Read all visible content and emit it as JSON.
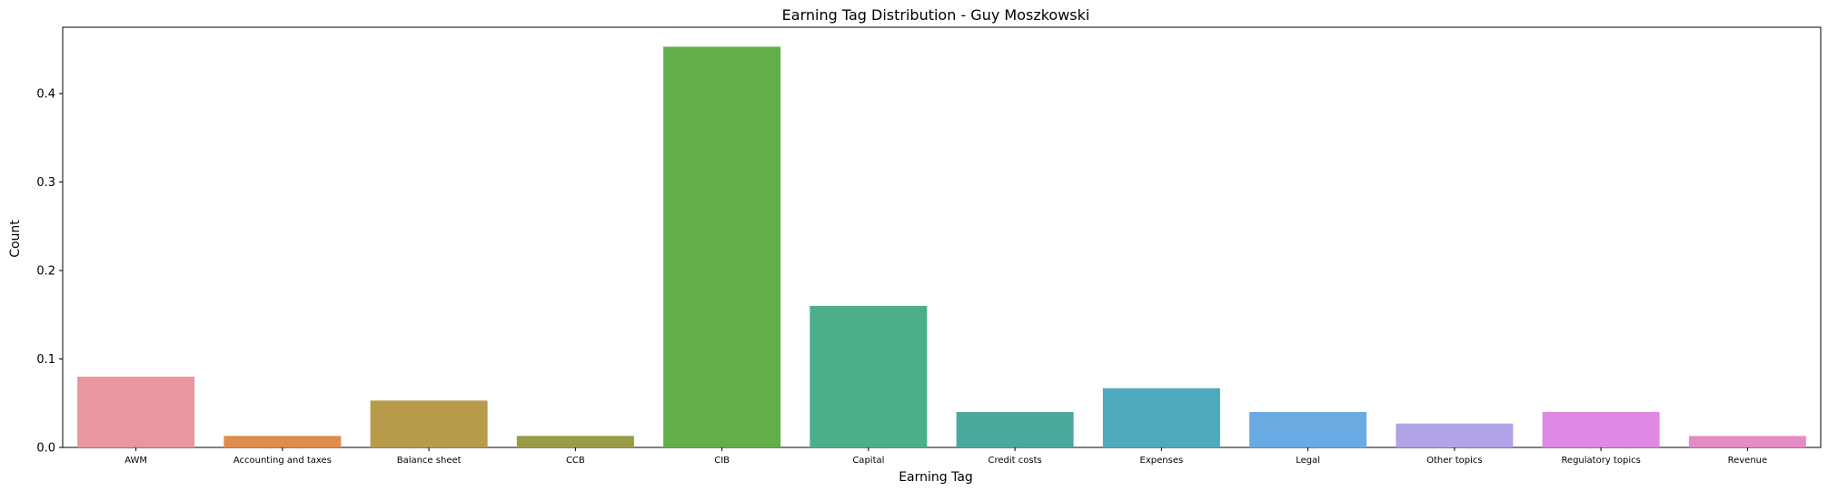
{
  "chart_data": {
    "type": "bar",
    "title": "Earning Tag Distribution - Guy Moszkowski",
    "xlabel": "Earning Tag",
    "ylabel": "Count",
    "ylim": [
      0,
      0.475
    ],
    "yticks": [
      "0.0",
      "0.1",
      "0.2",
      "0.3",
      "0.4"
    ],
    "grid": false,
    "categories": [
      "AWM",
      "Accounting and taxes",
      "Balance sheet",
      "CCB",
      "CIB",
      "Capital",
      "Credit costs",
      "Expenses",
      "Legal",
      "Other topics",
      "Regulatory topics",
      "Revenue"
    ],
    "values": [
      0.08,
      0.013,
      0.053,
      0.013,
      0.453,
      0.16,
      0.04,
      0.067,
      0.04,
      0.027,
      0.04,
      0.013
    ],
    "colors": [
      "#e9969f",
      "#e08c4e",
      "#b89b4a",
      "#9a9c45",
      "#62ae48",
      "#4baf8a",
      "#49a99d",
      "#4eaabd",
      "#69aae3",
      "#b2a3e6",
      "#de8ae5",
      "#e58cc4"
    ]
  }
}
